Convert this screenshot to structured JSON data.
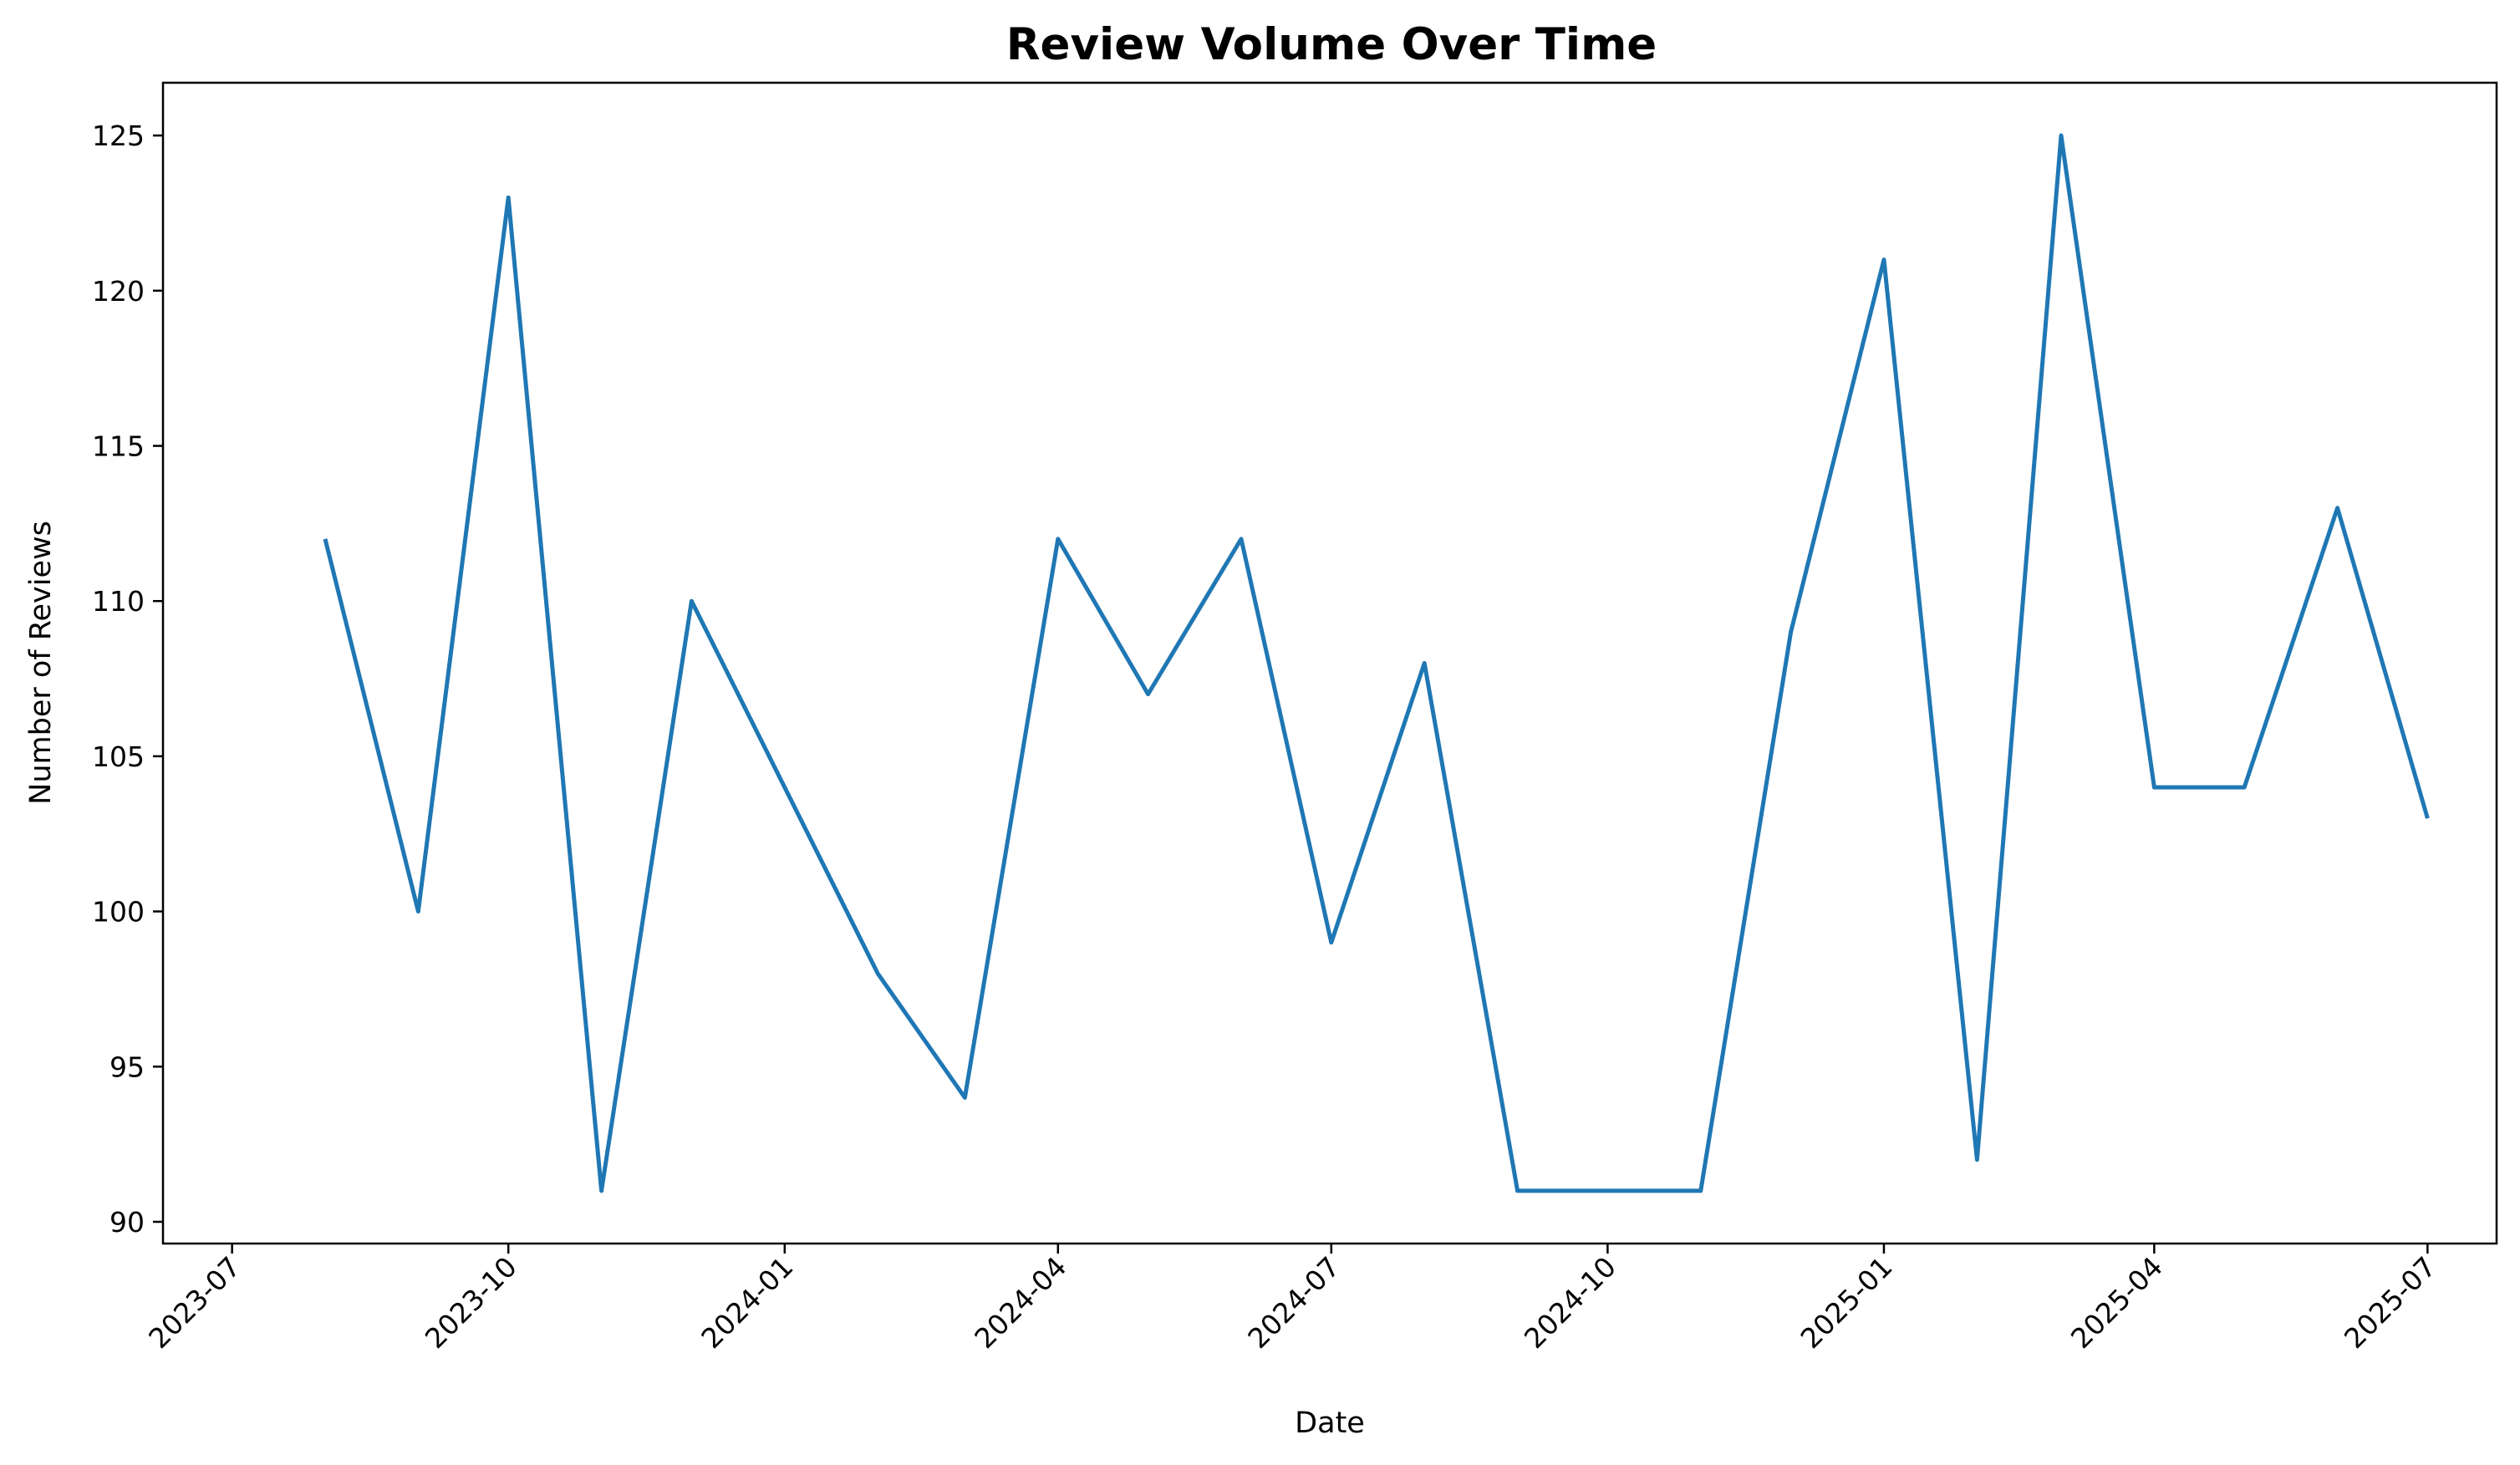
{
  "chart_data": {
    "type": "line",
    "title": "Review Volume Over Time",
    "xlabel": "Date",
    "ylabel": "Number of Reviews",
    "x": [
      "2023-08-01",
      "2023-09-01",
      "2023-10-01",
      "2023-11-01",
      "2023-12-01",
      "2024-01-01",
      "2024-02-01",
      "2024-03-01",
      "2024-04-01",
      "2024-05-01",
      "2024-06-01",
      "2024-07-01",
      "2024-08-01",
      "2024-09-01",
      "2024-10-01",
      "2024-11-01",
      "2024-12-01",
      "2025-01-01",
      "2025-02-01",
      "2025-03-01",
      "2025-04-01",
      "2025-05-01",
      "2025-06-01",
      "2025-07-01"
    ],
    "series": [
      {
        "values": [
          112,
          100,
          123,
          91,
          110,
          104,
          98,
          94,
          112,
          107,
          112,
          99,
          108,
          91,
          91,
          91,
          109,
          121,
          92,
          125,
          104,
          104,
          113,
          103
        ]
      }
    ],
    "xticks": [
      "2023-07",
      "2023-10",
      "2024-01",
      "2024-04",
      "2024-07",
      "2024-10",
      "2025-01",
      "2025-04",
      "2025-07"
    ],
    "yticks": [
      90,
      95,
      100,
      105,
      110,
      115,
      120,
      125
    ],
    "xlim": [
      "2023-06-08",
      "2025-07-24"
    ],
    "ylim": [
      89.3,
      126.7
    ],
    "grid": false,
    "legend": "none",
    "line_color": "#1f77b4"
  }
}
